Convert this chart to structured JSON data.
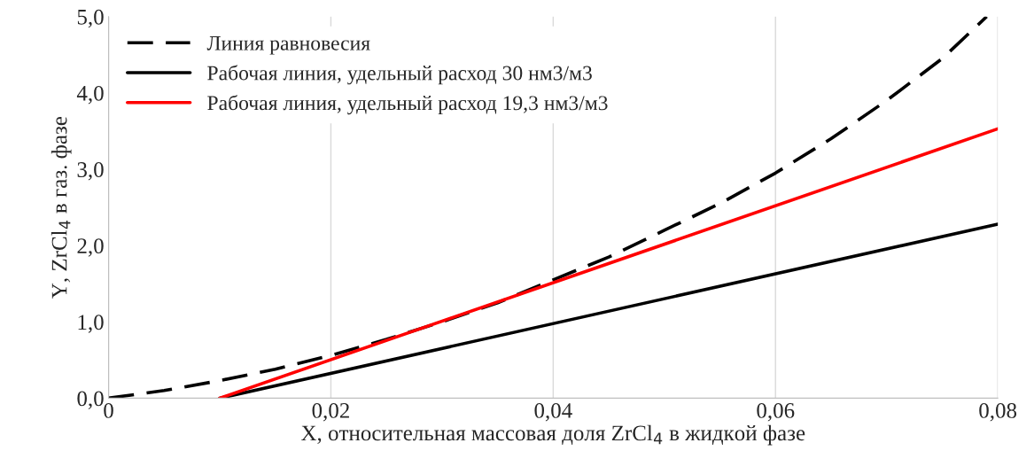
{
  "chart_data": {
    "type": "line",
    "xlabel": "X, относительная массовая доля ZrCl$_{4}$ в жидкой фазе",
    "ylabel": "Y, ZrCl$_{4}$ в газ. фазе",
    "series": [
      {
        "name": "Линия равновесия",
        "color": "#000000",
        "line_style": "dashed",
        "x": [
          0,
          0.005,
          0.01,
          0.015,
          0.02,
          0.025,
          0.03,
          0.035,
          0.04,
          0.045,
          0.05,
          0.055,
          0.06,
          0.065,
          0.07,
          0.075,
          0.079
        ],
        "values": [
          0,
          0.1,
          0.23,
          0.38,
          0.56,
          0.77,
          1.0,
          1.25,
          1.55,
          1.85,
          2.2,
          2.55,
          2.95,
          3.4,
          3.9,
          4.45,
          5.0
        ]
      },
      {
        "name": "Рабочая линия, удельный расход 30 нм3/м3",
        "color": "#000000",
        "line_style": "solid",
        "x": [
          0.01,
          0.08
        ],
        "values": [
          0,
          2.28
        ]
      },
      {
        "name": "Рабочая линия, удельный расход 19,3 нм3/м3",
        "color": "#ff0000",
        "line_style": "solid",
        "x": [
          0.01,
          0.08
        ],
        "values": [
          0,
          3.53
        ]
      }
    ],
    "xlim": [
      0,
      0.08
    ],
    "xticks": [
      0,
      {
        "value": 0.02,
        "label": "0,02"
      },
      {
        "value": 0.04,
        "label": "0,04"
      },
      {
        "value": 0.06,
        "label": "0,06"
      },
      {
        "value": 0.08,
        "label": "0,08"
      }
    ],
    "ylim": [
      0,
      5
    ],
    "yticks": [
      {
        "value": 0,
        "label": "0,0"
      },
      {
        "value": 1,
        "label": "1,0"
      },
      {
        "value": 2,
        "label": "2,0"
      },
      {
        "value": 3,
        "label": "3,0"
      },
      {
        "value": 4,
        "label": "4,0"
      },
      {
        "value": 5,
        "label": "5,0"
      }
    ],
    "grid": "x",
    "legend": "top left",
    "marker": "none"
  }
}
